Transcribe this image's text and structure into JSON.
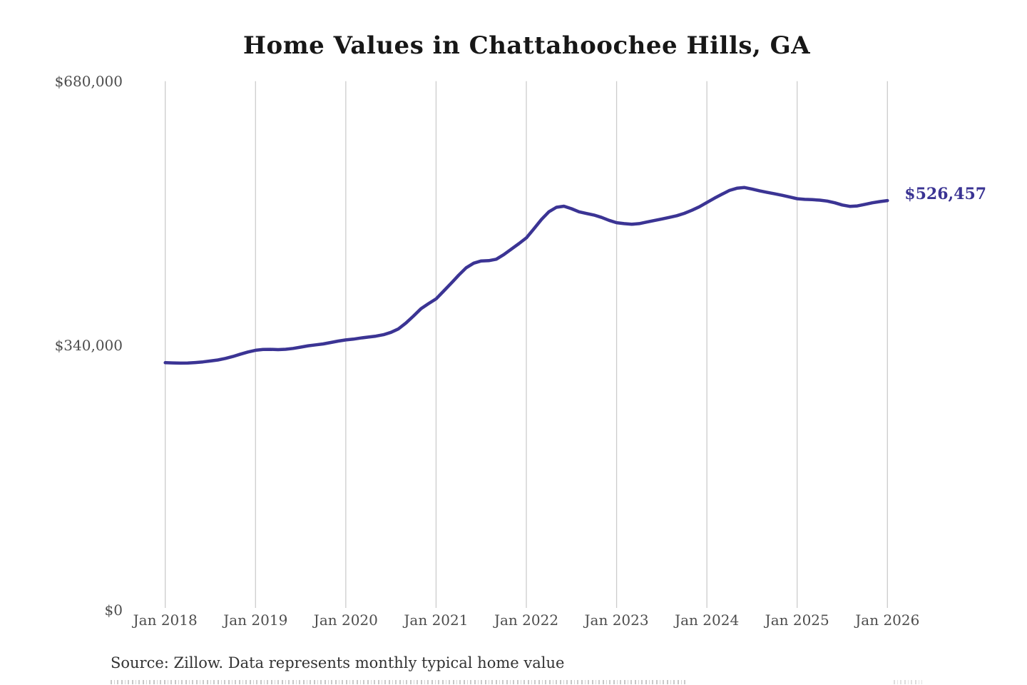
{
  "title": "Home Values in Chattahoochee Hills, GA",
  "end_label": "$526,457",
  "source_note": "Source: Zillow. Data represents monthly typical home value",
  "colors": {
    "line": "#3b3494",
    "end_label": "#3a3393",
    "grid": "#cccccc",
    "title": "#171717",
    "tick": "#4d4d4d",
    "source": "#333333",
    "background": "#ffffff"
  },
  "chart_data": {
    "type": "line",
    "title": "Home Values in Chattahoochee Hills, GA",
    "xlabel": "",
    "ylabel": "",
    "x_start": "2018-01",
    "x_end": "2026-01",
    "frequency": "monthly",
    "ylim": [
      0,
      680000
    ],
    "grid": "vertical-only",
    "legend": "none",
    "x_ticks": [
      "Jan 2018",
      "Jan 2019",
      "Jan 2020",
      "Jan 2021",
      "Jan 2022",
      "Jan 2023",
      "Jan 2024",
      "Jan 2025",
      "Jan 2026"
    ],
    "x_tick_interval_months": 12,
    "y_ticks": [
      {
        "label": "$0",
        "value": 0
      },
      {
        "label": "$340,000",
        "value": 340000
      },
      {
        "label": "$680,000",
        "value": 680000
      }
    ],
    "values": [
      318000,
      317800,
      317500,
      317600,
      318200,
      319000,
      320200,
      321500,
      323500,
      326000,
      329000,
      331800,
      334000,
      335000,
      335200,
      334800,
      335300,
      336400,
      338000,
      339800,
      341000,
      342200,
      344000,
      345800,
      347300,
      348300,
      349800,
      351000,
      352200,
      354000,
      357000,
      361500,
      369000,
      378000,
      387500,
      394000,
      400000,
      410000,
      420000,
      430500,
      440000,
      446000,
      448800,
      449200,
      451000,
      457000,
      464000,
      471000,
      478500,
      490000,
      502000,
      512000,
      517800,
      519200,
      516000,
      512000,
      509800,
      507800,
      504800,
      501000,
      498000,
      496800,
      496000,
      496800,
      498800,
      500800,
      502800,
      504800,
      507000,
      510000,
      514000,
      518500,
      524000,
      529500,
      534500,
      539500,
      542300,
      543200,
      541300,
      539000,
      537000,
      535200,
      533200,
      531000,
      528800,
      528000,
      527600,
      527000,
      525800,
      523600,
      520800,
      519000,
      519600,
      521600,
      523600,
      525200,
      526457
    ],
    "final_value": 526457
  }
}
